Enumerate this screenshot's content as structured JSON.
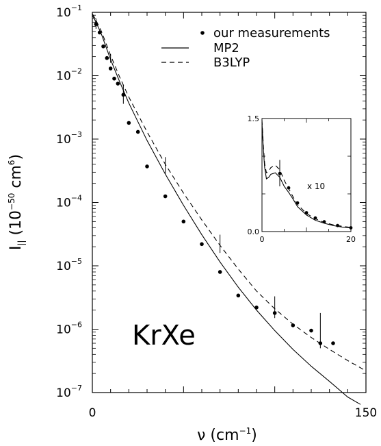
{
  "chart_data": {
    "type": "scatter",
    "yscale": "log",
    "xlim": [
      0,
      150
    ],
    "ylim": [
      1e-07,
      0.1
    ],
    "x_tick_labels": [
      "0",
      "150"
    ],
    "x_tick_values": [
      0,
      150
    ],
    "y_tick_labels": [
      {
        "base": "10",
        "exp": "−1",
        "value": 0.1
      },
      {
        "base": "10",
        "exp": "−2",
        "value": 0.01
      },
      {
        "base": "10",
        "exp": "−3",
        "value": 0.001
      },
      {
        "base": "10",
        "exp": "−4",
        "value": 0.0001
      },
      {
        "base": "10",
        "exp": "−5",
        "value": 1e-05
      },
      {
        "base": "10",
        "exp": "−6",
        "value": 1e-06
      },
      {
        "base": "10",
        "exp": "−7",
        "value": 1e-07
      }
    ],
    "xlabel": {
      "main": "ν  (cm",
      "sup": "−1",
      "tail": ")"
    },
    "ylabel": {
      "main": "I",
      "sub": "||",
      "mid": "  (10",
      "sup": "−50",
      "unit": "  cm",
      "sup2": "6",
      "tail": ")"
    },
    "annotation": "KrXe",
    "legend": {
      "placement": "top-right",
      "entries": [
        {
          "label": "our measurements",
          "style": "points"
        },
        {
          "label": "MP2",
          "style": "solid"
        },
        {
          "label": "B3LYP",
          "style": "dashed"
        }
      ]
    },
    "series": [
      {
        "name": "our measurements",
        "style": "points",
        "x": [
          2,
          4,
          6,
          8,
          10,
          12,
          14,
          17,
          20,
          25,
          30,
          40,
          50,
          60,
          70,
          80,
          90,
          100,
          110,
          120,
          125,
          132
        ],
        "y": [
          0.065,
          0.048,
          0.029,
          0.019,
          0.013,
          0.009,
          0.0075,
          0.005,
          0.0018,
          0.0013,
          0.00037,
          0.000125,
          5e-05,
          2.2e-05,
          8e-06,
          3.4e-06,
          2.2e-06,
          1.8e-06,
          1.15e-06,
          9.5e-07,
          6e-07,
          6e-07
        ],
        "error_bars": [
          {
            "x": 2,
            "low": 0.055,
            "high": 0.08
          },
          {
            "x": 10,
            "low": 0.016,
            "high": 0.022
          },
          {
            "x": 17,
            "low": 0.0036,
            "high": 0.0072
          },
          {
            "x": 40,
            "low": 0.00028,
            "high": 0.00052
          },
          {
            "x": 70,
            "low": 1.6e-05,
            "high": 3.1e-05
          },
          {
            "x": 100,
            "low": 1.5e-06,
            "high": 3.3e-06
          },
          {
            "x": 125,
            "low": 5e-07,
            "high": 1.8e-06
          }
        ]
      },
      {
        "name": "MP2",
        "style": "solid",
        "x": [
          0,
          2,
          5,
          10,
          15,
          20,
          30,
          40,
          50,
          60,
          70,
          80,
          90,
          100,
          110,
          120,
          130,
          140,
          147
        ],
        "y": [
          0.09,
          0.07,
          0.045,
          0.018,
          0.008,
          0.0037,
          0.00095,
          0.00028,
          9e-05,
          3.1e-05,
          1.15e-05,
          4.6e-06,
          2e-06,
          9.5e-07,
          4.8e-07,
          2.6e-07,
          1.5e-07,
          8.5e-08,
          6.5e-08
        ]
      },
      {
        "name": "B3LYP",
        "style": "dashed",
        "x": [
          0,
          2,
          5,
          10,
          15,
          20,
          30,
          40,
          50,
          60,
          70,
          80,
          90,
          100,
          110,
          120,
          130,
          140,
          150
        ],
        "y": [
          0.095,
          0.075,
          0.05,
          0.021,
          0.0095,
          0.0046,
          0.0013,
          0.0004,
          0.00014,
          5.3e-05,
          2.1e-05,
          8.9e-06,
          4e-06,
          2.1e-06,
          1.2e-06,
          7.4e-07,
          4.8e-07,
          3.2e-07,
          2.2e-07
        ]
      }
    ],
    "inset": {
      "type": "line",
      "xlim": [
        0,
        20
      ],
      "ylim": [
        0,
        1.5
      ],
      "x_tick_labels": [
        "0",
        "20"
      ],
      "x_tick_values": [
        0,
        20
      ],
      "y_tick_labels": [
        "0.0",
        "1.5"
      ],
      "y_tick_values": [
        0,
        1.5
      ],
      "annotation": "x 10",
      "series": [
        {
          "name": "our measurements",
          "style": "points",
          "x": [
            4,
            6,
            8,
            10,
            12,
            14,
            17,
            20
          ],
          "y": [
            0.77,
            0.58,
            0.38,
            0.25,
            0.18,
            0.13,
            0.08,
            0.05
          ],
          "error_bars": [
            {
              "x": 4,
              "low": 0.6,
              "high": 0.95
            }
          ]
        },
        {
          "name": "MP2",
          "style": "solid",
          "x": [
            0,
            0.3,
            0.6,
            1,
            1.5,
            2,
            3,
            4,
            5,
            6,
            7,
            8,
            10,
            12,
            14,
            16,
            18,
            20
          ],
          "y": [
            1.45,
            1.1,
            0.85,
            0.7,
            0.72,
            0.76,
            0.78,
            0.72,
            0.6,
            0.52,
            0.43,
            0.33,
            0.22,
            0.15,
            0.11,
            0.08,
            0.06,
            0.05
          ]
        },
        {
          "name": "B3LYP",
          "style": "dashed",
          "x": [
            0,
            0.3,
            0.6,
            1,
            1.5,
            2,
            3,
            4,
            5,
            6,
            7,
            8,
            10,
            12,
            14,
            16,
            18,
            20
          ],
          "y": [
            1.48,
            1.15,
            0.9,
            0.78,
            0.8,
            0.85,
            0.88,
            0.82,
            0.68,
            0.57,
            0.46,
            0.36,
            0.24,
            0.17,
            0.12,
            0.09,
            0.07,
            0.055
          ]
        }
      ]
    }
  }
}
